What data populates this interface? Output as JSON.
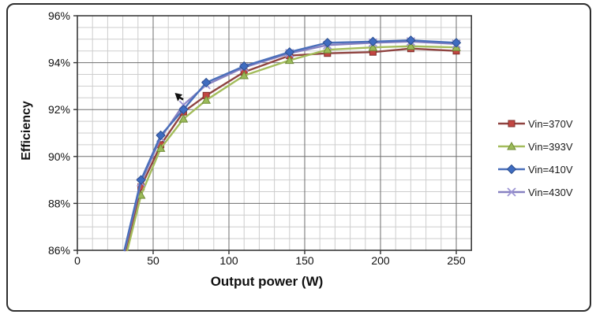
{
  "figure": {
    "border_color": "#2e2e2e",
    "background": "#ffffff"
  },
  "chart_data": {
    "type": "line",
    "title": "",
    "xlabel": "Output power (W)",
    "ylabel": "Efficiency",
    "xlim": [
      0,
      260
    ],
    "ylim": [
      86,
      96
    ],
    "x_ticks": [
      0,
      50,
      100,
      150,
      200,
      250
    ],
    "x_tick_labels": [
      "0",
      "50",
      "100",
      "150",
      "200",
      "250"
    ],
    "y_ticks": [
      86,
      88,
      90,
      92,
      94,
      96
    ],
    "y_tick_labels": [
      "86%",
      "88%",
      "90%",
      "92%",
      "94%",
      "96%"
    ],
    "x_minor_step": 10,
    "y_minor_step": 0.5,
    "grid": "major+minor",
    "grid_minor_color": "#cdcdcd",
    "grid_major_color": "#6e6e6e",
    "plot_border_color": "#3a3a3a",
    "legend_position": "right",
    "x": [
      42,
      55,
      70,
      85,
      110,
      140,
      165,
      195,
      220,
      250
    ],
    "series": [
      {
        "name": "Vin=370V",
        "marker": "square",
        "line_color": "#8F4340",
        "marker_fill": "#C24642",
        "marker_edge": "#7E2D2A",
        "entry_x": 32,
        "values": [
          88.7,
          90.5,
          91.9,
          92.6,
          93.6,
          94.3,
          94.4,
          94.45,
          94.6,
          94.5
        ]
      },
      {
        "name": "Vin=393V",
        "marker": "triangle",
        "line_color": "#A3BC5B",
        "marker_fill": "#9BBB59",
        "marker_edge": "#6F8A37",
        "entry_x": 33,
        "values": [
          88.35,
          90.35,
          91.6,
          92.4,
          93.45,
          94.1,
          94.55,
          94.65,
          94.7,
          94.65
        ]
      },
      {
        "name": "Vin=410V",
        "marker": "diamond",
        "line_color": "#4A6FBA",
        "marker_fill": "#3F6CC0",
        "marker_edge": "#2C4E8E",
        "entry_x": 31,
        "values": [
          89.0,
          90.9,
          92.0,
          93.15,
          93.85,
          94.45,
          94.85,
          94.9,
          94.95,
          94.85
        ]
      },
      {
        "name": "Vin=430V",
        "marker": "x",
        "line_color": "#8781C1",
        "marker_fill": "#9C94D4",
        "marker_edge": "#6F66AE",
        "entry_x": 31.3,
        "values": [
          88.9,
          90.8,
          92.2,
          93.05,
          93.8,
          94.4,
          94.75,
          94.85,
          94.9,
          94.8
        ]
      }
    ],
    "annotations": [
      {
        "type": "mouse-cursor",
        "x": 64.5,
        "y": 92.7
      }
    ]
  }
}
